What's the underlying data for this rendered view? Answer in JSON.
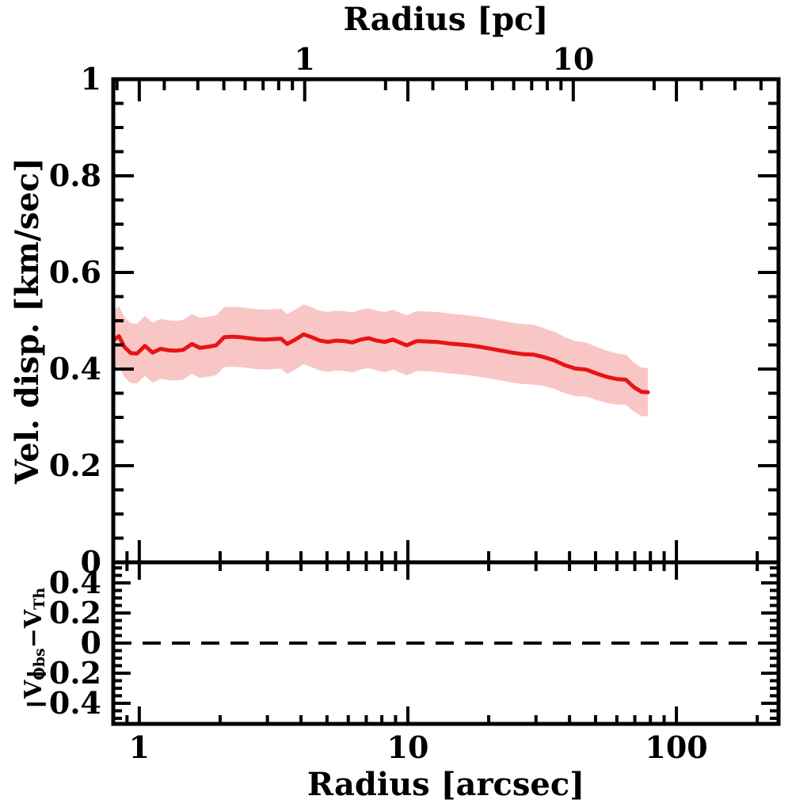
{
  "figure": {
    "background": "#ffffff",
    "frame_color": "#000000"
  },
  "chart_data": {
    "type": "line",
    "description": "Velocity dispersion radial profile with 1-sigma shaded band (top panel) and observed-minus-theory residual panel with dashed zero line (bottom panel)",
    "x_axis": {
      "scale": "log",
      "bottom_label": "Radius [arcsec]",
      "top_label": "Radius [pc]",
      "xlim_arcsec": [
        0.8,
        240
      ],
      "bottom_major_ticks": [
        1,
        10,
        100
      ],
      "bottom_major_labels": [
        "1",
        "10",
        "100"
      ],
      "bottom_minor_ticks": [
        0.9,
        2,
        3,
        4,
        5,
        6,
        7,
        8,
        9,
        20,
        30,
        40,
        50,
        60,
        70,
        80,
        90,
        200
      ],
      "arcsec_per_pc": 4.13,
      "top_major_ticks_pc": [
        1,
        10
      ],
      "top_major_labels": [
        "1",
        "10"
      ],
      "top_minor_ticks_pc": [
        0.2,
        0.3,
        0.4,
        0.5,
        0.6,
        0.7,
        0.8,
        0.9,
        2,
        3,
        4,
        5,
        6,
        7,
        8,
        9,
        20,
        30,
        40,
        50
      ]
    },
    "top_panel": {
      "ylabel": "Vel. disp. [km/sec]",
      "ylim": [
        0,
        1
      ],
      "major_ticks": [
        0,
        0.2,
        0.4,
        0.6,
        0.8,
        1
      ],
      "major_labels": [
        "0",
        "0.2",
        "0.4",
        "0.6",
        "0.8",
        "1"
      ],
      "minor_step": 0.05,
      "series": {
        "name": "velocity-dispersion-profile",
        "line_color": "#e81414",
        "band_color": "#f9c6c6",
        "r_arcsec": [
          0.8,
          0.84,
          0.88,
          0.93,
          0.98,
          1.05,
          1.12,
          1.2,
          1.28,
          1.37,
          1.46,
          1.57,
          1.68,
          1.8,
          1.93,
          2.07,
          2.22,
          2.38,
          2.55,
          2.73,
          2.93,
          3.14,
          3.37,
          3.55,
          3.81,
          4.09,
          4.38,
          4.7,
          5.04,
          5.4,
          5.79,
          6.21,
          6.66,
          7.14,
          7.65,
          8.2,
          8.8,
          9.43,
          9.9,
          10.8,
          11.9,
          12.9,
          14.2,
          15.6,
          17.0,
          18.5,
          20.4,
          22.3,
          24.5,
          26.8,
          29.3,
          32.0,
          35.1,
          38.4,
          42.1,
          46.1,
          50.3,
          55.0,
          60.5,
          64.8,
          69.3,
          74.1,
          78.3
        ],
        "v_kms": [
          0.46,
          0.468,
          0.446,
          0.433,
          0.432,
          0.448,
          0.434,
          0.442,
          0.439,
          0.438,
          0.44,
          0.452,
          0.444,
          0.446,
          0.449,
          0.466,
          0.467,
          0.466,
          0.464,
          0.462,
          0.461,
          0.462,
          0.463,
          0.452,
          0.461,
          0.472,
          0.466,
          0.459,
          0.456,
          0.459,
          0.458,
          0.455,
          0.461,
          0.464,
          0.459,
          0.456,
          0.461,
          0.454,
          0.449,
          0.458,
          0.457,
          0.456,
          0.453,
          0.451,
          0.449,
          0.446,
          0.442,
          0.438,
          0.434,
          0.431,
          0.43,
          0.425,
          0.418,
          0.408,
          0.401,
          0.399,
          0.391,
          0.384,
          0.379,
          0.378,
          0.363,
          0.353,
          0.352
        ],
        "band_halfwidth_kms": [
          0.062,
          0.062,
          0.062,
          0.062,
          0.062,
          0.062,
          0.062,
          0.062,
          0.062,
          0.062,
          0.062,
          0.062,
          0.062,
          0.062,
          0.062,
          0.062,
          0.062,
          0.062,
          0.062,
          0.062,
          0.062,
          0.062,
          0.062,
          0.062,
          0.062,
          0.062,
          0.062,
          0.062,
          0.062,
          0.062,
          0.062,
          0.062,
          0.062,
          0.062,
          0.062,
          0.062,
          0.062,
          0.062,
          0.062,
          0.062,
          0.062,
          0.062,
          0.062,
          0.062,
          0.062,
          0.062,
          0.062,
          0.062,
          0.062,
          0.062,
          0.062,
          0.06,
          0.059,
          0.058,
          0.057,
          0.056,
          0.055,
          0.054,
          0.053,
          0.052,
          0.051,
          0.05,
          0.05
        ]
      }
    },
    "bottom_panel": {
      "ylabel_parts": [
        {
          "text": "V",
          "sub": false
        },
        {
          "text": "Obs",
          "sub": true
        },
        {
          "text": "−V",
          "sub": false
        },
        {
          "text": "Th",
          "sub": true
        }
      ],
      "ylim": [
        -0.537,
        0.537
      ],
      "major_ticks": [
        -0.4,
        -0.2,
        0,
        0.2,
        0.4
      ],
      "major_labels": [
        "−0.4",
        "−0.2",
        "0",
        "0.2",
        "0.4"
      ],
      "minor_step": 0.05,
      "zero_line": {
        "value": 0,
        "style": "dashed",
        "color": "#000000"
      }
    }
  }
}
